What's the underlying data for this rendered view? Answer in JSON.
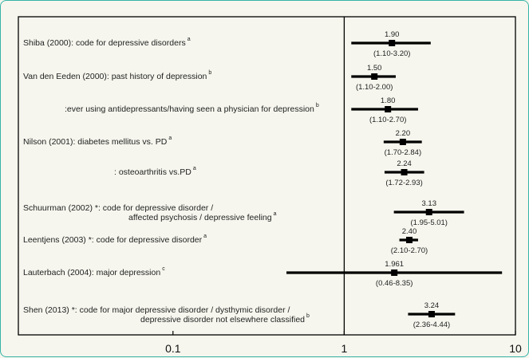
{
  "chart_data": {
    "type": "forest",
    "x_scale": "log",
    "xlim": [
      0.0125,
      10
    ],
    "x_ticks": [
      {
        "value": 0.1,
        "label": "0.1"
      },
      {
        "value": 1,
        "label": "1"
      },
      {
        "value": 10,
        "label": "10"
      }
    ],
    "reference_line": 1,
    "studies": [
      {
        "label": [
          "Shiba (2000): code for depressive disorders"
        ],
        "sup": "a",
        "estimate": 1.9,
        "lower": 1.1,
        "upper": 3.2,
        "est_text": "1.90",
        "ci_text": "(1.10-3.20)"
      },
      {
        "label": [
          "Van den Eeden (2000): past history of depression"
        ],
        "sup": "b",
        "estimate": 1.5,
        "lower": 1.1,
        "upper": 2.0,
        "est_text": "1.50",
        "ci_text": "(1.10-2.00)"
      },
      {
        "label": [
          ":ever using antidepressants/having seen a physician for depression"
        ],
        "sup": "b",
        "estimate": 1.8,
        "lower": 1.1,
        "upper": 2.7,
        "est_text": "1.80",
        "ci_text": "(1.10-2.70)"
      },
      {
        "label": [
          "Nilson (2001): diabetes mellitus vs. PD"
        ],
        "sup": "a",
        "estimate": 2.2,
        "lower": 1.7,
        "upper": 2.84,
        "est_text": "2.20",
        "ci_text": "(1.70-2.84)"
      },
      {
        "label": [
          ": osteoarthritis vs.PD"
        ],
        "sup": "a",
        "estimate": 2.24,
        "lower": 1.72,
        "upper": 2.93,
        "est_text": "2.24",
        "ci_text": "(1.72-2.93)"
      },
      {
        "label": [
          "Schuurman (2002) *: code for depressive disorder /",
          "affected psychosis / depressive feeling"
        ],
        "sup": "a",
        "estimate": 3.13,
        "lower": 1.95,
        "upper": 5.01,
        "est_text": "3.13",
        "ci_text": "(1.95-5.01)"
      },
      {
        "label": [
          "Leentjens (2003) *: code for depressive disorder"
        ],
        "sup": "a",
        "estimate": 2.4,
        "lower": 2.1,
        "upper": 2.7,
        "est_text": "2.40",
        "ci_text": "(2.10-2.70)"
      },
      {
        "label": [
          "Lauterbach (2004): major depression"
        ],
        "sup": "c",
        "estimate": 1.961,
        "lower": 0.46,
        "upper": 8.35,
        "est_text": "1.961",
        "ci_text": "(0.46-8.35)"
      },
      {
        "label": [
          "Shen (2013) *: code for major depressive disorder / dysthymic disorder /",
          "depressive disorder not elsewhere classified"
        ],
        "sup": "b",
        "estimate": 3.24,
        "lower": 2.36,
        "upper": 4.44,
        "est_text": "3.24",
        "ci_text": "(2.36-4.44)"
      }
    ]
  }
}
